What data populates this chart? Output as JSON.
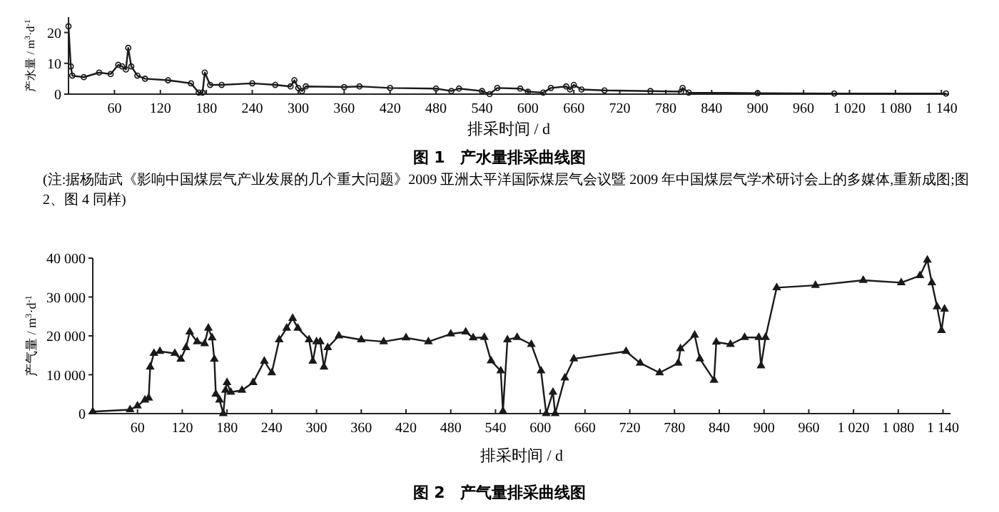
{
  "chart_data": [
    {
      "type": "line",
      "title": "图 1　产水量排采曲线图",
      "xlabel": "排采时间 / d",
      "ylabel": "产水量 / m$^{3}$·d$^{-1}$",
      "annotations": [
        "(注:据杨陆武《影响中国煤层气产业发展的几个重大问题》2009 亚洲太平洋国际煤层气会议暨 2009 年中国煤层气学术研讨会上的多媒体,重新成图;图 2、图 4 同样)"
      ],
      "x": [
        0,
        3,
        5,
        20,
        40,
        55,
        65,
        70,
        75,
        78,
        82,
        90,
        100,
        130,
        160,
        170,
        175,
        178,
        185,
        200,
        240,
        270,
        290,
        295,
        300,
        305,
        310,
        360,
        380,
        420,
        480,
        500,
        510,
        540,
        550,
        560,
        590,
        600,
        620,
        630,
        650,
        655,
        660,
        670,
        700,
        760,
        800,
        802,
        810,
        900,
        1000,
        1146
      ],
      "series": [
        {
          "color": "#1a1a1a",
          "values": [
            22,
            9,
            6,
            5.5,
            7,
            6.5,
            9.5,
            9,
            8,
            15,
            9,
            6,
            5,
            4.5,
            3.5,
            0.5,
            0.5,
            7,
            3,
            3,
            3.5,
            3,
            2.5,
            4.5,
            2,
            1,
            2.5,
            2.3,
            2.5,
            2,
            1.8,
            1,
            1.8,
            1,
            0,
            2,
            1.8,
            0.8,
            0.5,
            2,
            2.5,
            1.5,
            3,
            1.5,
            1.2,
            1,
            0.8,
            2,
            0.5,
            0.3,
            0.2,
            0.2
          ]
        }
      ],
      "xlim": [
        0,
        1150
      ],
      "ylim": [
        0,
        25
      ],
      "xticks": [
        60,
        120,
        180,
        240,
        300,
        360,
        420,
        480,
        540,
        600,
        660,
        720,
        780,
        840,
        900,
        960,
        {
          "value": 1020,
          "label": "1 020"
        },
        {
          "value": 1080,
          "label": "1 080"
        },
        {
          "value": 1140,
          "label": "1 140"
        }
      ],
      "yticks": [
        0,
        10,
        20
      ],
      "marker": "circle",
      "line_style": "solid",
      "grid": false
    },
    {
      "type": "line",
      "title": "图 2　产气量排采曲线图",
      "xlabel": "排采时间 / d",
      "ylabel": "产气量 / m$^{3}$·d$^{-1}$",
      "x": [
        0,
        50,
        60,
        70,
        75,
        77,
        82,
        90,
        110,
        118,
        125,
        130,
        140,
        150,
        155,
        160,
        163,
        165,
        170,
        175,
        178,
        180,
        185,
        200,
        215,
        230,
        240,
        250,
        260,
        268,
        275,
        290,
        295,
        300,
        305,
        310,
        315,
        330,
        360,
        390,
        420,
        450,
        480,
        500,
        510,
        525,
        534,
        547,
        550,
        556,
        569,
        588,
        601,
        608,
        617,
        620,
        633,
        645,
        715,
        734,
        760,
        785,
        788,
        807,
        814,
        833,
        836,
        855,
        874,
        893,
        896,
        902,
        917,
        969,
        1033,
        1084,
        1109,
        1119,
        1125,
        1132,
        1138,
        1142
      ],
      "series": [
        {
          "color": "#1a1a1a",
          "values": [
            500,
            1000,
            2000,
            3500,
            4000,
            12000,
            15500,
            16000,
            15500,
            14000,
            17000,
            21000,
            18500,
            18000,
            22000,
            19500,
            14000,
            5000,
            3500,
            0,
            6000,
            8000,
            5500,
            6000,
            8000,
            13500,
            10500,
            19000,
            22000,
            24500,
            22000,
            19000,
            13500,
            18500,
            18500,
            12000,
            17000,
            20000,
            19000,
            18500,
            19500,
            18500,
            20500,
            21000,
            19500,
            19600,
            13600,
            11000,
            600,
            19000,
            19600,
            17800,
            11000,
            0,
            5500,
            0,
            9200,
            14100,
            16000,
            13000,
            10500,
            13000,
            16700,
            20200,
            14100,
            8600,
            18400,
            17800,
            19600,
            19600,
            12300,
            19600,
            32400,
            33000,
            34300,
            33700,
            35500,
            39500,
            33700,
            27500,
            21400,
            26900
          ]
        }
      ],
      "xlim": [
        0,
        1150
      ],
      "ylim": [
        0,
        40000
      ],
      "xticks": [
        60,
        120,
        180,
        240,
        300,
        360,
        420,
        480,
        540,
        600,
        660,
        720,
        780,
        840,
        900,
        960,
        {
          "value": 1020,
          "label": "1 020"
        },
        {
          "value": 1080,
          "label": "1 080"
        },
        {
          "value": 1140,
          "label": "1 140"
        }
      ],
      "yticks": [
        0,
        {
          "value": 10000,
          "label": "10 000"
        },
        {
          "value": 20000,
          "label": "20 000"
        },
        {
          "value": 30000,
          "label": "30 000"
        },
        {
          "value": 40000,
          "label": "40 000"
        }
      ],
      "marker": "triangle",
      "line_style": "solid",
      "grid": false
    }
  ]
}
